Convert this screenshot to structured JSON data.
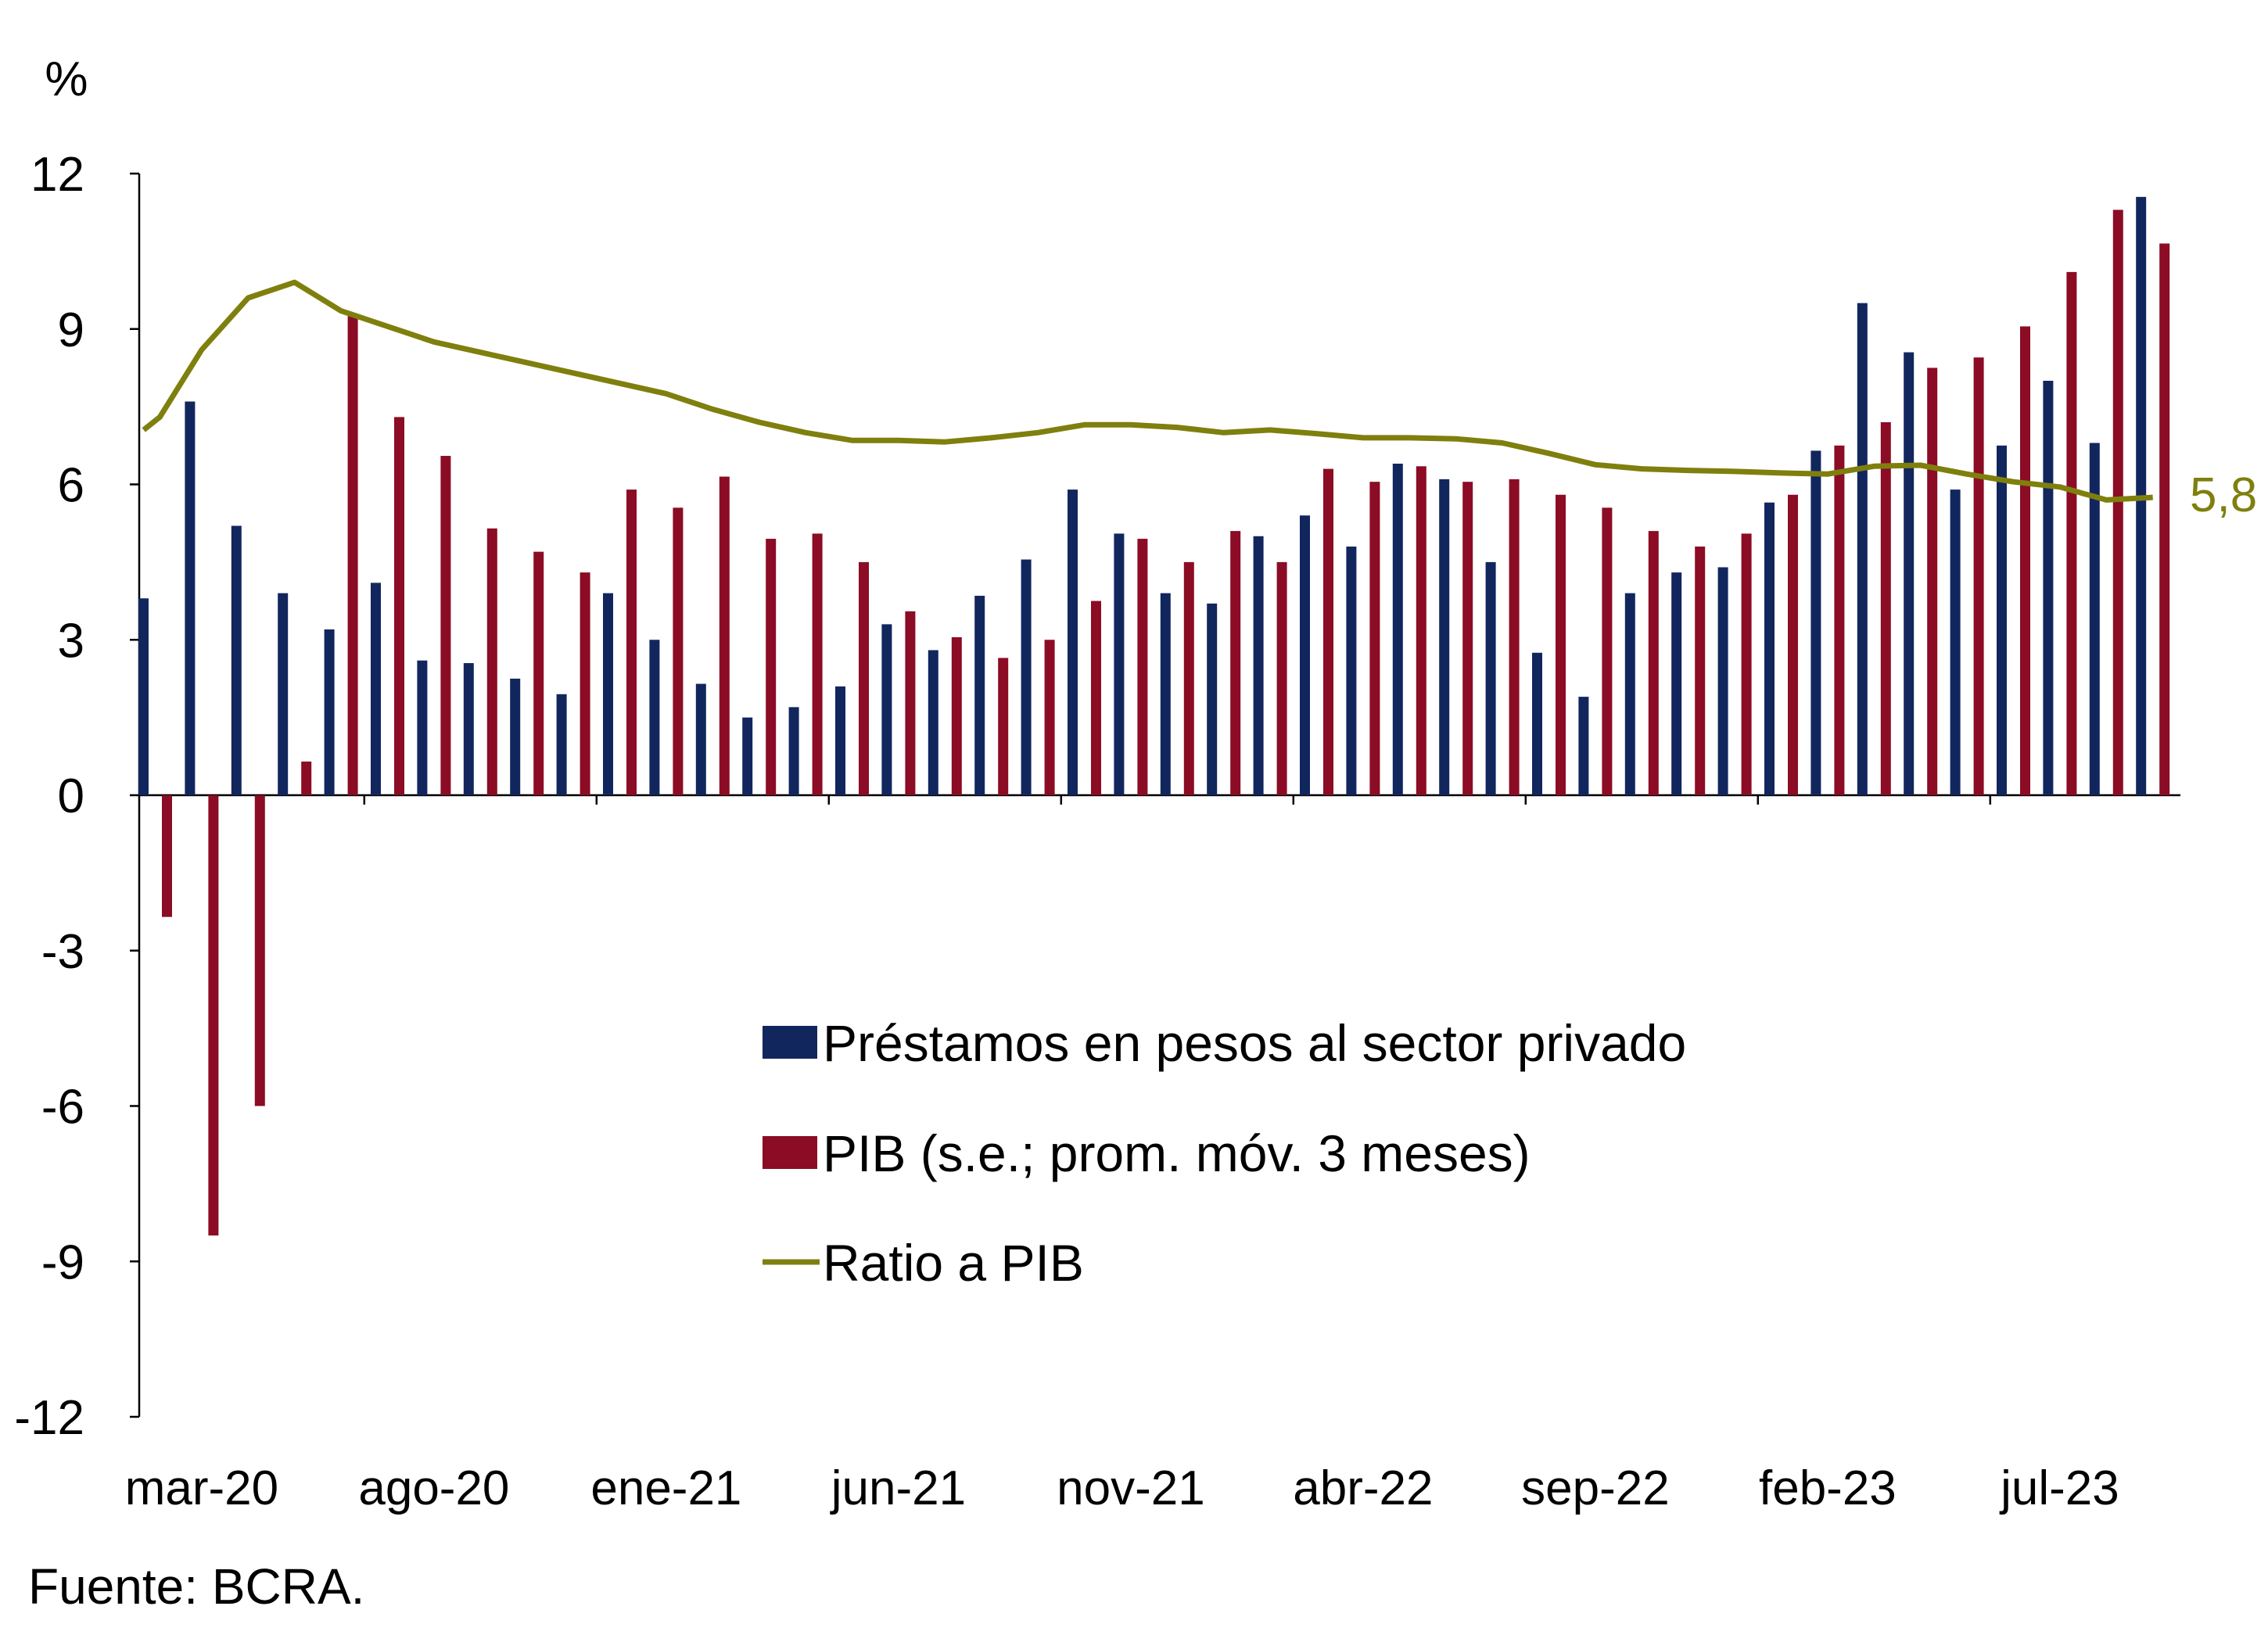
{
  "chart_data": {
    "type": "bar",
    "unit_label": "%",
    "source": "Fuente: BCRA.",
    "ylim": [
      -12,
      12
    ],
    "yticks": [
      "12",
      "9",
      "6",
      "3",
      "0",
      "-3",
      "-6",
      "-9",
      "-12"
    ],
    "ytick_values": [
      12,
      9,
      6,
      3,
      0,
      -3,
      -6,
      -9,
      -12
    ],
    "xtick_labels": [
      "mar-20",
      "ago-20",
      "ene-21",
      "jun-21",
      "nov-21",
      "abr-22",
      "sep-22",
      "feb-23",
      "jul-23"
    ],
    "categories": [
      "mar-20",
      "abr-20",
      "may-20",
      "jun-20",
      "jul-20",
      "ago-20",
      "sep-20",
      "oct-20",
      "nov-20",
      "dic-20",
      "ene-21",
      "feb-21",
      "mar-21",
      "abr-21",
      "may-21",
      "jun-21",
      "jul-21",
      "ago-21",
      "sep-21",
      "oct-21",
      "nov-21",
      "dic-21",
      "ene-22",
      "feb-22",
      "mar-22",
      "abr-22",
      "may-22",
      "jun-22",
      "jul-22",
      "ago-22",
      "sep-22",
      "oct-22",
      "nov-22",
      "dic-22",
      "ene-23",
      "feb-23",
      "mar-23",
      "abr-23",
      "may-23",
      "jun-23",
      "jul-23",
      "ago-23",
      "sep-23",
      "oct-23"
    ],
    "series": [
      {
        "name": "Préstamos en pesos al sector privado",
        "kind": "bar",
        "color": "#12265e",
        "values": [
          3.8,
          7.6,
          5.2,
          3.9,
          3.2,
          4.1,
          2.6,
          2.55,
          2.25,
          1.95,
          3.9,
          3.0,
          2.15,
          1.5,
          1.7,
          2.1,
          3.3,
          2.8,
          3.85,
          4.55,
          5.9,
          5.05,
          3.9,
          3.7,
          5.0,
          5.4,
          4.8,
          6.4,
          6.1,
          4.5,
          2.75,
          1.9,
          3.9,
          4.3,
          4.4,
          5.65,
          6.65,
          9.5,
          8.55,
          5.9,
          6.75,
          8.0,
          6.8,
          11.55
        ]
      },
      {
        "name": "PIB (s.e.; prom. móv. 3 meses)",
        "kind": "bar",
        "color": "#8b0c24",
        "values": [
          -2.35,
          -8.5,
          -6.0,
          0.65,
          9.25,
          7.3,
          6.55,
          5.15,
          4.7,
          4.3,
          5.9,
          5.55,
          6.15,
          4.95,
          5.05,
          4.5,
          3.55,
          3.05,
          2.65,
          3.0,
          3.75,
          4.95,
          4.5,
          5.1,
          4.5,
          6.3,
          6.05,
          6.35,
          6.05,
          6.1,
          5.8,
          5.55,
          5.1,
          4.8,
          5.05,
          5.8,
          6.75,
          7.2,
          8.25,
          8.45,
          9.05,
          10.1,
          11.3,
          10.65
        ]
      },
      {
        "name": "Ratio a PIB",
        "kind": "line",
        "color": "#7f7f0e",
        "x": [
          -0.25,
          0.1,
          1.0,
          2.0,
          3.0,
          4.0,
          5.0,
          6.0,
          7.0,
          8.0,
          9.0,
          10.0,
          11.0,
          12.0,
          13.0,
          14.0,
          15.0,
          16.0,
          17.0,
          18.0,
          19.0,
          20.0,
          21.0,
          22.0,
          23.0,
          24.0,
          25.0,
          26.0,
          27.0,
          28.0,
          29.0,
          30.0,
          31.0,
          32.0,
          33.0,
          34.0,
          35.0,
          36.0,
          37.0,
          38.0,
          39.0,
          40.0,
          41.0,
          42.0,
          43.0
        ],
        "values": [
          7.05,
          7.3,
          8.6,
          9.6,
          9.9,
          9.35,
          9.05,
          8.75,
          8.55,
          8.35,
          8.15,
          7.95,
          7.75,
          7.45,
          7.2,
          7.0,
          6.85,
          6.85,
          6.82,
          6.9,
          7.0,
          7.15,
          7.15,
          7.1,
          7.0,
          7.05,
          6.98,
          6.9,
          6.9,
          6.88,
          6.8,
          6.6,
          6.38,
          6.3,
          6.27,
          6.25,
          6.22,
          6.2,
          6.35,
          6.37,
          6.2,
          6.05,
          5.95,
          5.7,
          5.75
        ]
      }
    ],
    "end_label": "5,8",
    "legend": {
      "placement": "center-bottom",
      "entries": [
        {
          "label": "Préstamos en pesos al sector privado",
          "color": "#12265e",
          "symbol": "square"
        },
        {
          "label": "PIB (s.e.; prom. móv. 3 meses)",
          "color": "#8b0c24",
          "symbol": "square"
        },
        {
          "label": "Ratio a PIB",
          "color": "#7f7f0e",
          "symbol": "line"
        }
      ]
    }
  }
}
